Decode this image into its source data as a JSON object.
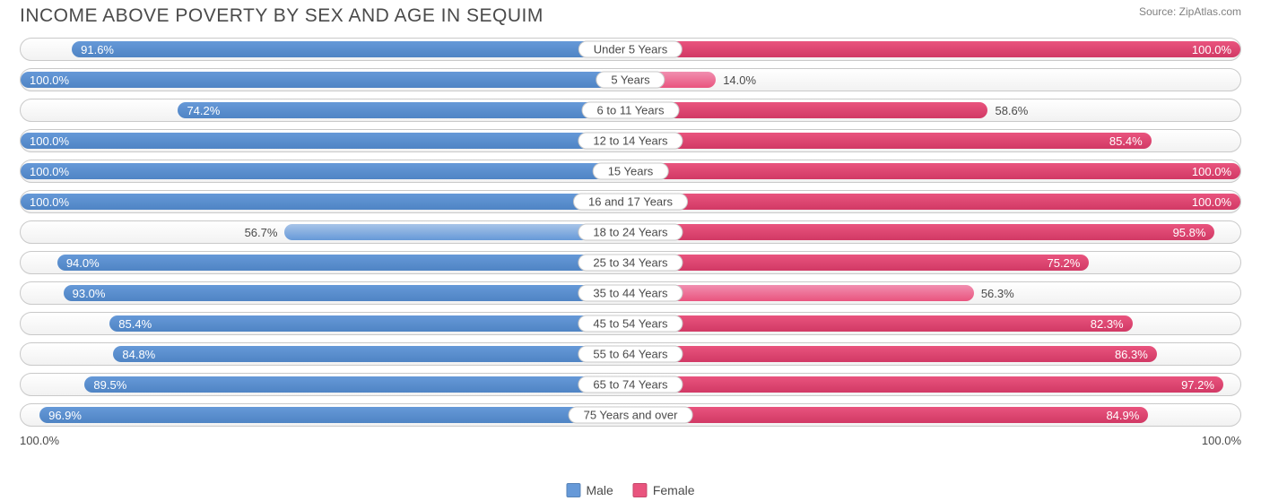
{
  "header": {
    "title": "INCOME ABOVE POVERTY BY SEX AND AGE IN SEQUIM",
    "source": "Source: ZipAtlas.com"
  },
  "chart": {
    "type": "diverging-bar",
    "male_color": "#6699d8",
    "male_color_light": "#a8c4e8",
    "female_color": "#e9547e",
    "female_color_light": "#f18fb0",
    "bar_text_color": "#ffffff",
    "outside_text_color": "#4a4a4a",
    "row_border_color": "#c9c9c9",
    "row_bg_top": "#ffffff",
    "row_bg_bottom": "#f2f2f2",
    "label_fontsize": 13,
    "title_fontsize": 21,
    "axis_max_label": "100.0%",
    "legend": {
      "male": "Male",
      "female": "Female"
    },
    "rows": [
      {
        "category": "Under 5 Years",
        "male": 91.6,
        "female": 100.0,
        "male_label": "91.6%",
        "female_label": "100.0%"
      },
      {
        "category": "5 Years",
        "male": 100.0,
        "female": 14.0,
        "male_label": "100.0%",
        "female_label": "14.0%",
        "female_light": true
      },
      {
        "category": "6 to 11 Years",
        "male": 74.2,
        "female": 58.6,
        "male_label": "74.2%",
        "female_label": "58.6%"
      },
      {
        "category": "12 to 14 Years",
        "male": 100.0,
        "female": 85.4,
        "male_label": "100.0%",
        "female_label": "85.4%"
      },
      {
        "category": "15 Years",
        "male": 100.0,
        "female": 100.0,
        "male_label": "100.0%",
        "female_label": "100.0%"
      },
      {
        "category": "16 and 17 Years",
        "male": 100.0,
        "female": 100.0,
        "male_label": "100.0%",
        "female_label": "100.0%"
      },
      {
        "category": "18 to 24 Years",
        "male": 56.7,
        "female": 95.8,
        "male_label": "56.7%",
        "female_label": "95.8%",
        "male_light": true
      },
      {
        "category": "25 to 34 Years",
        "male": 94.0,
        "female": 75.2,
        "male_label": "94.0%",
        "female_label": "75.2%"
      },
      {
        "category": "35 to 44 Years",
        "male": 93.0,
        "female": 56.3,
        "male_label": "93.0%",
        "female_label": "56.3%",
        "female_light": true
      },
      {
        "category": "45 to 54 Years",
        "male": 85.4,
        "female": 82.3,
        "male_label": "85.4%",
        "female_label": "82.3%"
      },
      {
        "category": "55 to 64 Years",
        "male": 84.8,
        "female": 86.3,
        "male_label": "84.8%",
        "female_label": "86.3%"
      },
      {
        "category": "65 to 74 Years",
        "male": 89.5,
        "female": 97.2,
        "male_label": "89.5%",
        "female_label": "97.2%"
      },
      {
        "category": "75 Years and over",
        "male": 96.9,
        "female": 84.9,
        "male_label": "96.9%",
        "female_label": "84.9%"
      }
    ]
  }
}
